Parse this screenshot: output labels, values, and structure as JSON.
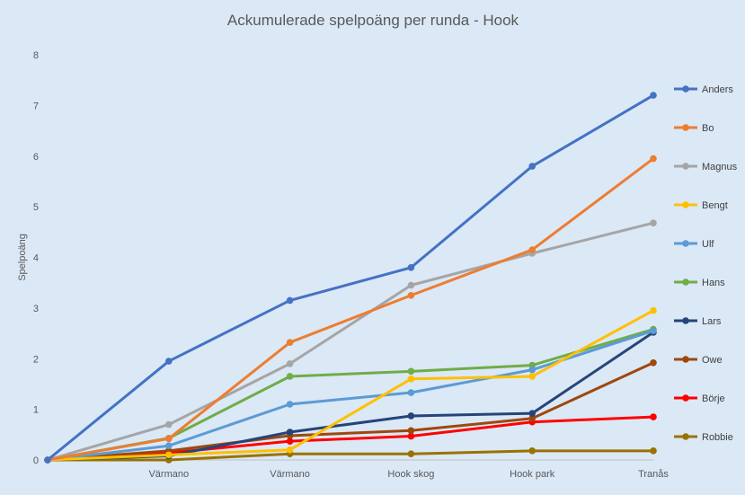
{
  "chart_data": {
    "type": "line",
    "title": "Ackumulerade spelpoäng per runda - Hook",
    "xlabel": "",
    "ylabel": "Spelpoäng",
    "categories": [
      "",
      "Värmano",
      "Värmano",
      "Hook skog",
      "Hook park",
      "Tranås"
    ],
    "ylim": [
      0,
      8
    ],
    "yticks": [
      0,
      1,
      2,
      3,
      4,
      5,
      6,
      7,
      8
    ],
    "grid": false,
    "legend_position": "right",
    "series": [
      {
        "name": "Anders",
        "color": "#4472c4",
        "values": [
          0,
          1.95,
          3.15,
          3.8,
          5.8,
          7.2
        ]
      },
      {
        "name": "Bo",
        "color": "#ed7d31",
        "values": [
          0,
          0.42,
          2.32,
          3.25,
          4.15,
          5.95
        ]
      },
      {
        "name": "Magnus",
        "color": "#a5a5a5",
        "values": [
          0,
          0.7,
          1.9,
          3.45,
          4.08,
          4.68
        ]
      },
      {
        "name": "Bengt",
        "color": "#ffc000",
        "values": [
          0,
          0.1,
          0.2,
          1.6,
          1.65,
          2.95
        ]
      },
      {
        "name": "Ulf",
        "color": "#5b9bd5",
        "values": [
          0,
          0.28,
          1.1,
          1.33,
          1.78,
          2.55
        ]
      },
      {
        "name": "Hans",
        "color": "#70ad47",
        "values": [
          0,
          0.43,
          1.65,
          1.75,
          1.87,
          2.58
        ]
      },
      {
        "name": "Lars",
        "color": "#264478",
        "values": [
          0,
          0.08,
          0.55,
          0.87,
          0.92,
          2.52
        ]
      },
      {
        "name": "Owe",
        "color": "#9e480e",
        "values": [
          0,
          0.18,
          0.48,
          0.58,
          0.82,
          1.92
        ]
      },
      {
        "name": "Börje",
        "color": "#ff0000",
        "values": [
          0,
          0.14,
          0.37,
          0.47,
          0.75,
          0.85
        ]
      },
      {
        "name": "Robbie",
        "color": "#997300",
        "values": [
          0,
          0,
          0.12,
          0.12,
          0.18,
          0.18
        ]
      }
    ]
  }
}
